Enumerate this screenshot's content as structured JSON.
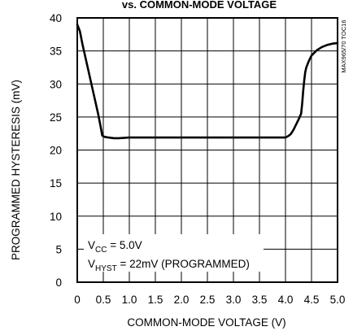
{
  "chart_data": {
    "type": "line",
    "title": "vs. COMMON-MODE VOLTAGE",
    "xlabel": "COMMON-MODE VOLTAGE (V)",
    "ylabel": "PROGRAMMED HYSTERESIS (mV)",
    "xlim": [
      0,
      5.0
    ],
    "ylim": [
      0,
      40
    ],
    "xticks": [
      "0",
      "0.5",
      "1.0",
      "1.5",
      "2.0",
      "2.5",
      "3.0",
      "3.5",
      "4.0",
      "4.5",
      "5.0"
    ],
    "yticks": [
      "0",
      "5",
      "10",
      "15",
      "20",
      "25",
      "30",
      "35",
      "40"
    ],
    "grid": true,
    "code": "MAX965/70 TOC16",
    "annotation": {
      "line1": {
        "main": "V",
        "sub": "CC",
        "rest": " = 5.0V"
      },
      "line2": {
        "main": "V",
        "sub": "HYST",
        "rest": " = 22mV (PROGRAMMED)"
      }
    },
    "series": [
      {
        "x": [
          0,
          0.05,
          0.1,
          0.2,
          0.3,
          0.4,
          0.45,
          0.48,
          0.52,
          0.6,
          0.7,
          0.8,
          1.0,
          1.5,
          2.0,
          2.5,
          3.0,
          3.5,
          3.9,
          4.0,
          4.05,
          4.1,
          4.15,
          4.2,
          4.25,
          4.3,
          4.32,
          4.34,
          4.36,
          4.38,
          4.4,
          4.45,
          4.5,
          4.6,
          4.7,
          4.8,
          4.9,
          5.0
        ],
        "values": [
          39.0,
          38.0,
          36.0,
          32.5,
          29.0,
          25.5,
          23.5,
          22.2,
          22.0,
          21.9,
          21.8,
          21.8,
          21.9,
          21.9,
          21.9,
          21.9,
          21.9,
          21.9,
          21.9,
          21.9,
          22.1,
          22.4,
          23.0,
          23.8,
          24.6,
          25.5,
          27.0,
          29.0,
          30.5,
          31.8,
          32.5,
          33.5,
          34.3,
          35.1,
          35.6,
          35.9,
          36.1,
          36.2
        ]
      }
    ]
  }
}
